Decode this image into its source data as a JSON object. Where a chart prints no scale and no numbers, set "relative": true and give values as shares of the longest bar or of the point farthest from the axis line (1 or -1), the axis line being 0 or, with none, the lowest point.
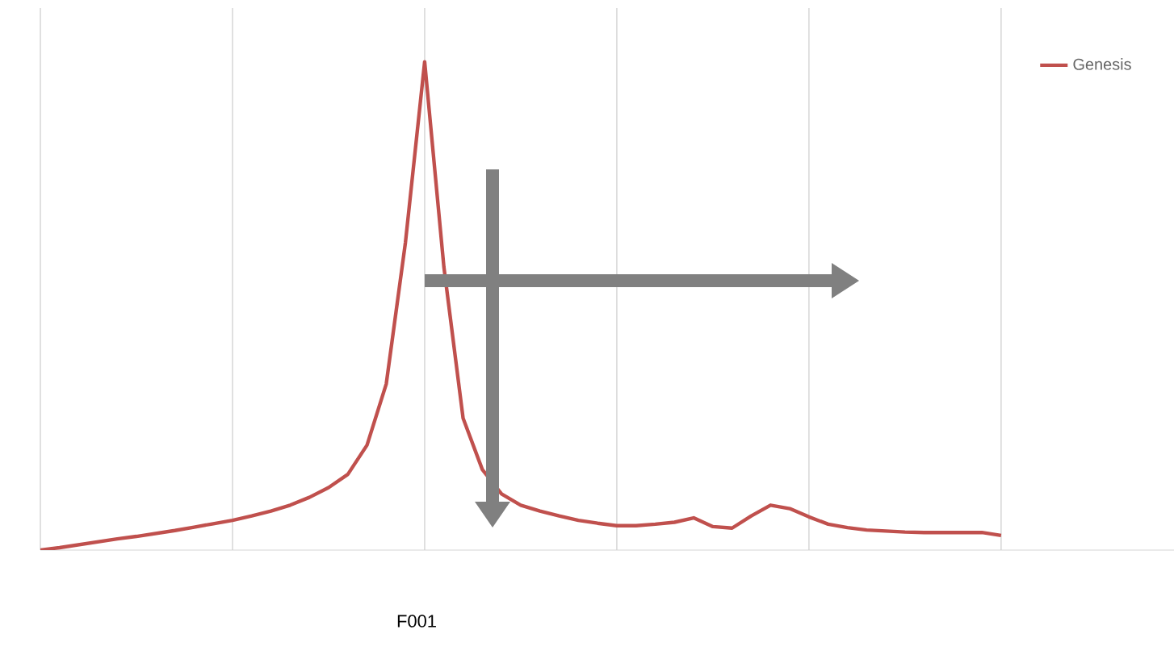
{
  "chart_data": {
    "type": "line",
    "relative": true,
    "grid": true,
    "legend": "top right",
    "categories": [
      null,
      null,
      null,
      null,
      null,
      null,
      null,
      null,
      null,
      null,
      null,
      null,
      null,
      null,
      null,
      null,
      null,
      null,
      null,
      null,
      null,
      null,
      null,
      null,
      null,
      null,
      null,
      null,
      null,
      null,
      null,
      null,
      null,
      null,
      null,
      null,
      null,
      null,
      null,
      null,
      null,
      null,
      null,
      null,
      null,
      null,
      null,
      null,
      null,
      null,
      null,
      null,
      null,
      null,
      null,
      null,
      null,
      null,
      null,
      null
    ],
    "series": [
      {
        "name": "Genesis",
        "color": "#c0504d",
        "values": [
          0,
          0.005,
          0.011,
          0.017,
          0.023,
          0.028,
          0.034,
          0.04,
          0.047,
          0.054,
          0.061,
          0.07,
          0.08,
          0.092,
          0.108,
          0.128,
          0.155,
          0.215,
          0.34,
          0.63,
          1.0,
          0.58,
          0.27,
          0.165,
          0.115,
          0.092,
          0.08,
          0.07,
          0.061,
          0.055,
          0.05,
          0.05,
          0.053,
          0.057,
          0.066,
          0.048,
          0.045,
          0.07,
          0.092,
          0.085,
          0.068,
          0.053,
          0.046,
          0.041,
          0.039,
          0.037,
          0.036,
          0.036,
          0.036,
          0.036,
          0.03,
          null,
          null,
          null,
          null,
          null,
          null,
          null,
          null,
          null
        ]
      }
    ],
    "annotations": [
      "F001"
    ]
  }
}
